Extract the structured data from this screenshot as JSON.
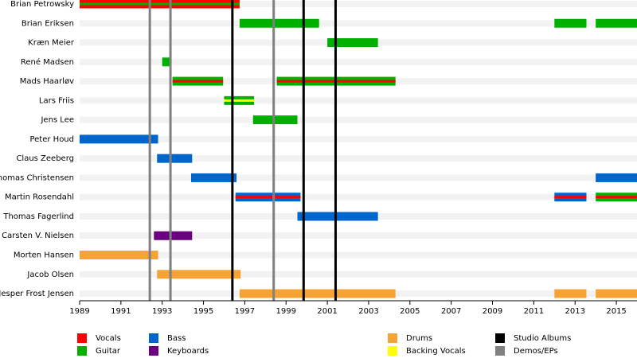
{
  "chart_data": {
    "type": "timeline",
    "members": [
      "Brian Petrowsky",
      "Brian Eriksen",
      "Kræn Meier",
      "René Madsen",
      "Mads Haarløv",
      "Lars Friis",
      "Jens Lee",
      "Peter Houd",
      "Claus Zeeberg",
      "Thomas Christensen",
      "Martin Rosendahl",
      "Thomas Fagerlind",
      "Carsten V. Nielsen",
      "Morten Hansen",
      "Jacob Olsen",
      "Jesper Frost Jensen"
    ],
    "roles": [
      {
        "name": "Vocals",
        "color": "#ff0000"
      },
      {
        "name": "Guitar",
        "color": "#00b000"
      },
      {
        "name": "Bass",
        "color": "#0066cc"
      },
      {
        "name": "Keyboards",
        "color": "#6a0080"
      },
      {
        "name": "Drums",
        "color": "#f6a336"
      },
      {
        "name": "Backing Vocals",
        "color": "#ffff00"
      },
      {
        "name": "Studio Albums",
        "color": "#000000"
      },
      {
        "name": "Demos/EPs",
        "color": "#808080"
      }
    ],
    "spans": [
      {
        "row": 0,
        "start": 1989.0,
        "end": 1996.75,
        "role": 0,
        "stripe": 1
      },
      {
        "row": 1,
        "start": 1996.75,
        "end": 2000.6,
        "role": 1
      },
      {
        "row": 1,
        "start": 2012.0,
        "end": 2013.55,
        "role": 1
      },
      {
        "row": 1,
        "start": 2014.0,
        "end": 2016.0,
        "role": 1
      },
      {
        "row": 2,
        "start": 2001.0,
        "end": 2003.45,
        "role": 1
      },
      {
        "row": 3,
        "start": 1993.0,
        "end": 1993.4,
        "role": 1
      },
      {
        "row": 4,
        "start": 1993.5,
        "end": 1995.95,
        "role": 1,
        "stripe": 0
      },
      {
        "row": 4,
        "start": 1998.55,
        "end": 2004.3,
        "role": 1,
        "stripe": 0
      },
      {
        "row": 5,
        "start": 1996.0,
        "end": 1997.45,
        "role": 1,
        "stripe": 5
      },
      {
        "row": 6,
        "start": 1997.4,
        "end": 1999.55,
        "role": 1
      },
      {
        "row": 7,
        "start": 1989.0,
        "end": 1992.8,
        "role": 2
      },
      {
        "row": 8,
        "start": 1992.75,
        "end": 1994.45,
        "role": 2
      },
      {
        "row": 9,
        "start": 1994.4,
        "end": 1996.6,
        "role": 2
      },
      {
        "row": 9,
        "start": 2014.0,
        "end": 2016.0,
        "role": 2
      },
      {
        "row": 10,
        "start": 1996.55,
        "end": 1999.7,
        "role": 2,
        "stripe": 0
      },
      {
        "row": 10,
        "start": 2012.0,
        "end": 2013.55,
        "role": 2,
        "stripe": 0
      },
      {
        "row": 10,
        "start": 2014.0,
        "end": 2016.0,
        "role": 1,
        "stripe": 0
      },
      {
        "row": 11,
        "start": 1999.55,
        "end": 2003.45,
        "role": 2
      },
      {
        "row": 12,
        "start": 1992.6,
        "end": 1994.45,
        "role": 3
      },
      {
        "row": 13,
        "start": 1989.0,
        "end": 1992.8,
        "role": 4
      },
      {
        "row": 14,
        "start": 1992.75,
        "end": 1996.8,
        "role": 4
      },
      {
        "row": 15,
        "start": 1996.75,
        "end": 2004.3,
        "role": 4
      },
      {
        "row": 15,
        "start": 2012.0,
        "end": 2013.55,
        "role": 4
      },
      {
        "row": 15,
        "start": 2014.0,
        "end": 2016.0,
        "role": 4
      }
    ],
    "events": [
      {
        "role": 6,
        "years": [
          1996.4,
          1999.85,
          2001.4
        ]
      },
      {
        "role": 7,
        "years": [
          1992.4,
          1993.4,
          1998.4
        ]
      }
    ],
    "xlim": [
      1989,
      2016
    ],
    "xticks": [
      1989,
      1991,
      1993,
      1995,
      1997,
      1999,
      2001,
      2003,
      2005,
      2007,
      2009,
      2011,
      2013,
      2015
    ]
  }
}
